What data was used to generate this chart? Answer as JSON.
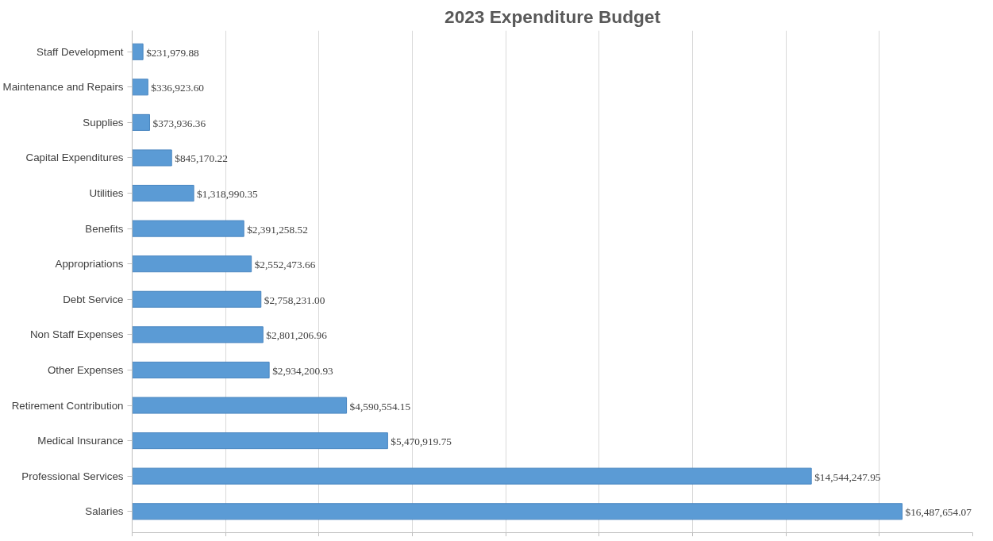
{
  "chart_data": {
    "type": "bar",
    "orientation": "horizontal",
    "title": "2023 Expenditure Budget",
    "categories": [
      "Staff Development",
      "Maintenance and Repairs",
      "Supplies",
      "Capital Expenditures",
      "Utilities",
      "Benefits",
      "Appropriations",
      "Debt Service",
      "Non Staff Expenses",
      "Other Expenses",
      "Retirement Contribution",
      "Medical Insurance",
      "Professional Services",
      "Salaries"
    ],
    "values": [
      231979.88,
      336923.6,
      373936.36,
      845170.22,
      1318990.35,
      2391258.52,
      2552473.66,
      2758231.0,
      2801206.96,
      2934200.93,
      4590554.15,
      5470919.75,
      14544247.95,
      16487654.07
    ],
    "value_labels": [
      "$231,979.88",
      "$336,923.60",
      "$373,936.36",
      "$845,170.22",
      "$1,318,990.35",
      "$2,391,258.52",
      "$2,552,473.66",
      "$2,758,231.00",
      "$2,801,206.96",
      "$2,934,200.93",
      "$4,590,554.15",
      "$5,470,919.75",
      "$14,544,247.95",
      "$16,487,654.07"
    ],
    "color": "#5b9bd5",
    "xlim": [
      0,
      18000000
    ],
    "xticks": [
      {
        "value": 0,
        "label": null
      },
      {
        "value": 2000000,
        "label": null
      },
      {
        "value": 4000000,
        "label": null
      },
      {
        "value": 6000000,
        "label": null
      },
      {
        "value": 8000000,
        "label": null
      },
      {
        "value": 10000000,
        "label": null
      },
      {
        "value": 12000000,
        "label": null
      },
      {
        "value": 14000000,
        "label": null
      },
      {
        "value": 16000000,
        "label": null
      },
      {
        "value": 18000000,
        "label": null
      }
    ],
    "grid": "x"
  }
}
